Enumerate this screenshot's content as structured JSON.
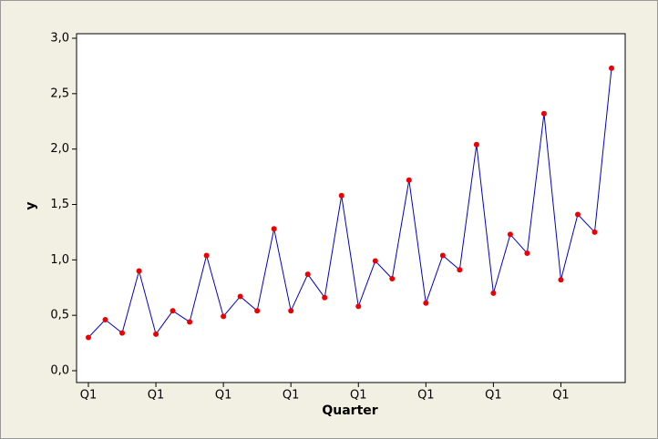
{
  "chart_data": {
    "type": "line",
    "xlabel": "Quarter",
    "ylabel": "y",
    "categories": [
      "Q1",
      null,
      null,
      null,
      "Q1",
      null,
      null,
      null,
      "Q1",
      null,
      null,
      null,
      "Q1",
      null,
      null,
      null,
      "Q1",
      null,
      null,
      null,
      "Q1",
      null,
      null,
      null,
      "Q1",
      null,
      null,
      null,
      "Q1",
      null,
      null,
      null
    ],
    "series": [
      {
        "color": "#0000cc",
        "marker_color": "#ee0000",
        "values": [
          0.3,
          0.46,
          0.34,
          0.9,
          0.33,
          0.54,
          0.44,
          1.04,
          0.49,
          0.67,
          0.54,
          1.28,
          0.54,
          0.87,
          0.66,
          1.58,
          0.58,
          0.99,
          0.83,
          1.72,
          0.61,
          1.04,
          0.91,
          2.04,
          0.7,
          1.23,
          1.06,
          2.32,
          0.82,
          1.41,
          1.25,
          2.73
        ]
      }
    ],
    "ylim": [
      0,
      3.0
    ],
    "yticks": [
      {
        "value": 0,
        "label": "0,0"
      },
      {
        "value": 0.5,
        "label": "0,5"
      },
      {
        "value": 1.0,
        "label": "1,0"
      },
      {
        "value": 1.5,
        "label": "1,5"
      },
      {
        "value": 2.0,
        "label": "2,0"
      },
      {
        "value": 2.5,
        "label": "2,5"
      },
      {
        "value": 3.0,
        "label": "3,0"
      }
    ],
    "grid": false
  }
}
